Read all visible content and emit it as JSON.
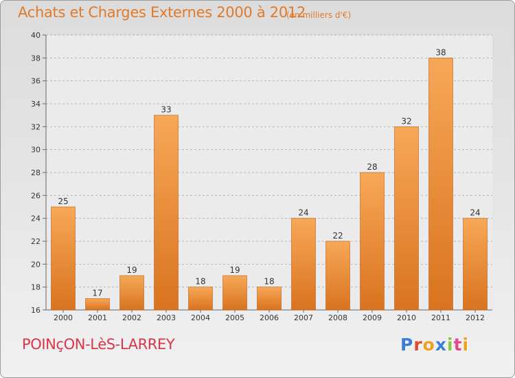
{
  "header": {
    "title": "Achats et Charges Externes 2000 à 2012",
    "unit": "(en milliers d'€)"
  },
  "footer": {
    "place": "POINçON-LèS-LARREY",
    "logo_letters": [
      "P",
      "r",
      "o",
      "x",
      "i",
      "t",
      "i"
    ],
    "logo_colors": [
      "#3a7fd5",
      "#e04a2a",
      "#f0a020",
      "#3a7fd5",
      "#8cc63f",
      "#e04a8a",
      "#f0a020"
    ]
  },
  "colors": {
    "bar_light": "#f7a857",
    "bar_dark": "#d9731f",
    "bar_edge": "#b8621e",
    "grid": "#b5b5b5",
    "axis": "#666666",
    "plot_background": "#ebebeb"
  },
  "chart_data": {
    "type": "bar",
    "categories": [
      "2000",
      "2001",
      "2002",
      "2003",
      "2004",
      "2005",
      "2006",
      "2007",
      "2008",
      "2009",
      "2010",
      "2011",
      "2012"
    ],
    "values": [
      25,
      17,
      19,
      33,
      18,
      19,
      18,
      24,
      22,
      28,
      32,
      38,
      24
    ],
    "data_labels": [
      "25",
      "17",
      "19",
      "33",
      "18",
      "19",
      "18",
      "24",
      "22",
      "28",
      "32",
      "38",
      "24"
    ],
    "ylim": [
      16,
      40
    ],
    "yticks": [
      16,
      18,
      20,
      22,
      24,
      26,
      28,
      30,
      32,
      34,
      36,
      38,
      40
    ],
    "ytick_labels": [
      "16",
      "18",
      "20",
      "22",
      "24",
      "26",
      "28",
      "30",
      "32",
      "34",
      "36",
      "38",
      "40"
    ],
    "grid": true,
    "grid_style": "dashed horizontal",
    "title": "Achats et Charges Externes 2000 à 2012",
    "xlabel": "",
    "ylabel": ""
  }
}
